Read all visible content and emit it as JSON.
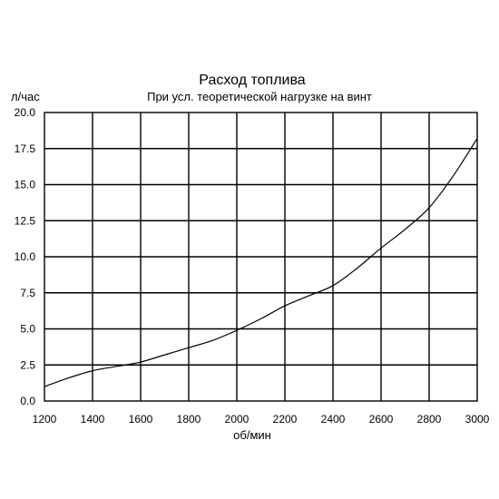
{
  "chart_data": {
    "type": "line",
    "title": "Расход топлива",
    "subtitle": "При усл. теоретической нагрузке на винт",
    "xlabel": "об/мин",
    "ylabel": "л/час",
    "xlim": [
      1200,
      3000
    ],
    "ylim": [
      0,
      20
    ],
    "x_ticks": [
      "1200",
      "1400",
      "1600",
      "1800",
      "2000",
      "2200",
      "2400",
      "2600",
      "2800",
      "3000"
    ],
    "y_ticks": [
      "0.0",
      "2.5",
      "5.0",
      "7.5",
      "10.0",
      "12.5",
      "15.0",
      "17.5",
      "20.0"
    ],
    "grid": true,
    "series": [
      {
        "x": [
          1200,
          1300,
          1400,
          1500,
          1600,
          1700,
          1800,
          1900,
          2000,
          2100,
          2200,
          2300,
          2400,
          2500,
          2600,
          2700,
          2800,
          2900,
          3000
        ],
        "y": [
          1.0,
          1.6,
          2.1,
          2.4,
          2.7,
          3.2,
          3.7,
          4.2,
          4.9,
          5.7,
          6.6,
          7.3,
          8.0,
          9.2,
          10.6,
          11.9,
          13.4,
          15.6,
          18.2
        ]
      }
    ]
  }
}
